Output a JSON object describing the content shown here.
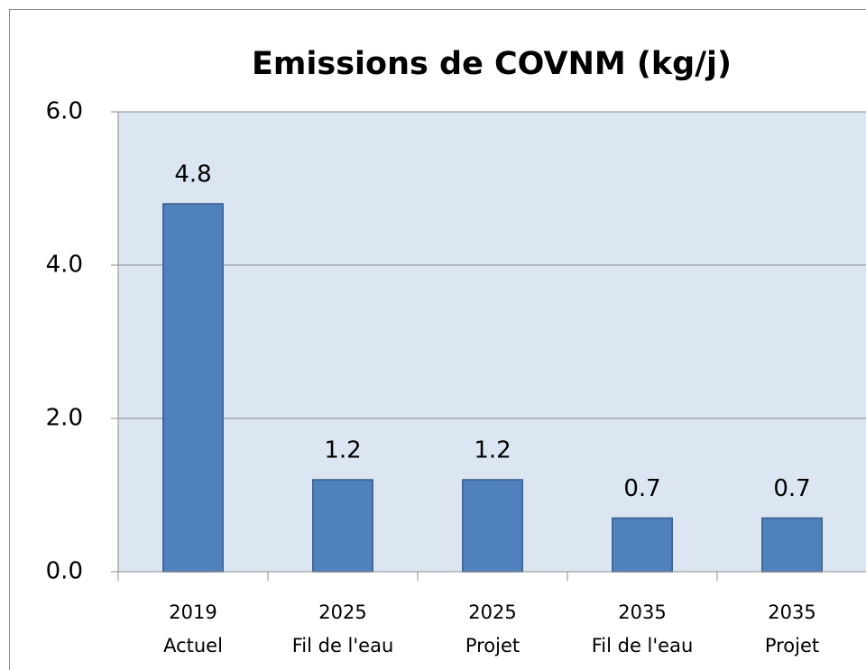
{
  "chart_data": {
    "type": "bar",
    "title": "Emissions de COVNM (kg/j)",
    "categories": [
      [
        "2019",
        "Actuel"
      ],
      [
        "2025",
        "Fil de l'eau"
      ],
      [
        "2025",
        "Projet"
      ],
      [
        "2035",
        "Fil de l'eau"
      ],
      [
        "2035",
        "Projet"
      ]
    ],
    "values": [
      4.8,
      1.2,
      1.2,
      0.7,
      0.7
    ],
    "color": "#4f81bd",
    "ylim": [
      0,
      6
    ],
    "yticks": [
      {
        "value": 0,
        "label": "0.0"
      },
      {
        "value": 2,
        "label": "2.0"
      },
      {
        "value": 4,
        "label": "4.0"
      },
      {
        "value": 6,
        "label": "6.0"
      }
    ],
    "grid": true
  }
}
